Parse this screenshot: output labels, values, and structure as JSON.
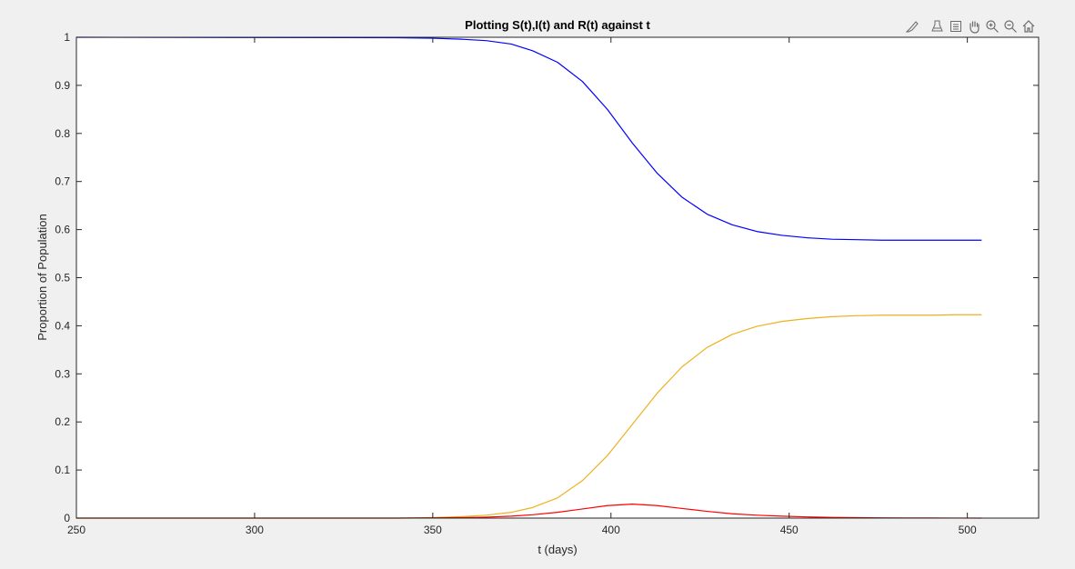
{
  "toolbar": {
    "icons": [
      "brush-icon",
      "data-tips-icon",
      "insert-legend-icon",
      "pan-icon",
      "zoom-in-icon",
      "zoom-out-icon",
      "home-icon"
    ]
  },
  "colors": {
    "background": "#f0f0f0",
    "axes_bg": "#ffffff",
    "axis": "#262626",
    "S": "#0000ff",
    "I": "#ff0000",
    "R": "#edb120"
  },
  "chart_data": {
    "type": "line",
    "title": "Plotting S(t),I(t) and R(t) against t",
    "xlabel": "t (days)",
    "ylabel": "Proportion of Population",
    "xlim": [
      250,
      520
    ],
    "ylim": [
      0,
      1
    ],
    "xticks": [
      250,
      300,
      350,
      400,
      450,
      500
    ],
    "xtick_labels": [
      "250",
      "300",
      "350",
      "400",
      "450",
      "500"
    ],
    "yticks": [
      0,
      0.1,
      0.2,
      0.3,
      0.4,
      0.5,
      0.6,
      0.7,
      0.8,
      0.9,
      1
    ],
    "ytick_labels": [
      "0",
      "0.1",
      "0.2",
      "0.3",
      "0.4",
      "0.5",
      "0.6",
      "0.7",
      "0.8",
      "0.9",
      "1"
    ],
    "grid": false,
    "legend": "none",
    "x": [
      250,
      340,
      350,
      358,
      365,
      372,
      378,
      385,
      392,
      399,
      406,
      413,
      420,
      427,
      434,
      441,
      448,
      455,
      462,
      469,
      476,
      483,
      490,
      497,
      504
    ],
    "series": [
      {
        "key": "S",
        "values": [
          1.0,
          0.999,
          0.998,
          0.996,
          0.993,
          0.986,
          0.972,
          0.948,
          0.908,
          0.85,
          0.78,
          0.717,
          0.667,
          0.632,
          0.61,
          0.596,
          0.588,
          0.583,
          0.58,
          0.579,
          0.578,
          0.578,
          0.578,
          0.578,
          0.578
        ]
      },
      {
        "key": "I",
        "values": [
          0.0,
          0.0,
          0.0005,
          0.001,
          0.002,
          0.004,
          0.007,
          0.012,
          0.019,
          0.026,
          0.029,
          0.026,
          0.02,
          0.014,
          0.009,
          0.006,
          0.004,
          0.0025,
          0.0015,
          0.001,
          0.0005,
          0.0003,
          0.0002,
          0.0001,
          0.0
        ]
      },
      {
        "key": "R",
        "values": [
          0.0,
          0.0,
          0.001,
          0.003,
          0.006,
          0.012,
          0.022,
          0.042,
          0.078,
          0.13,
          0.195,
          0.26,
          0.315,
          0.355,
          0.382,
          0.399,
          0.409,
          0.415,
          0.419,
          0.421,
          0.422,
          0.422,
          0.422,
          0.423,
          0.423
        ]
      }
    ]
  }
}
